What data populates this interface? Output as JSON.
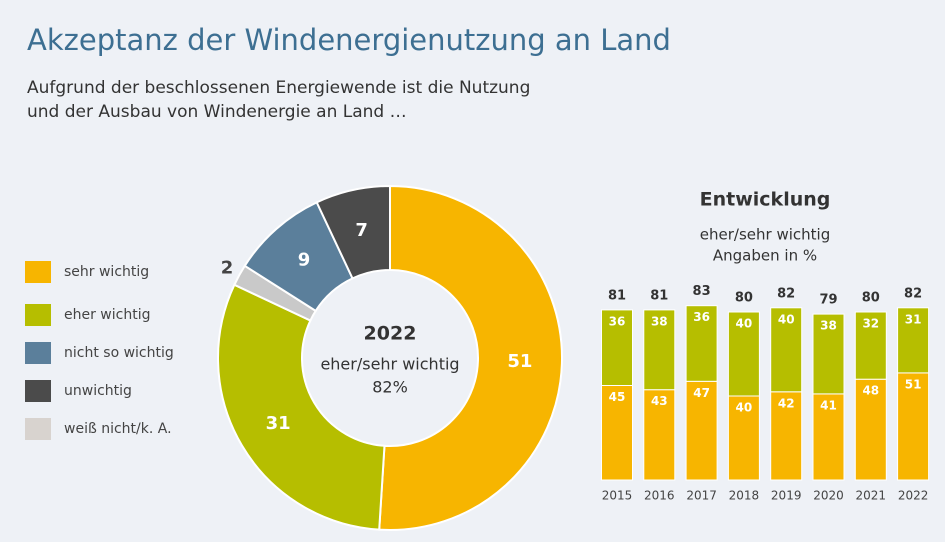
{
  "title": "Akzeptanz der Windenergienutzung an Land",
  "subtitle": [
    "Aufgrund der beschlossenen Energiewende ist die Nutzung",
    "und der Ausbau von Windenergie an Land …"
  ],
  "chart_data": [
    {
      "type": "pie",
      "categories": [
        "sehr wichtig",
        "eher wichtig",
        "nicht so wichtig",
        "unwichtig",
        "weiß nicht/k. A."
      ],
      "values": [
        51,
        31,
        9,
        7,
        2
      ],
      "colors": [
        "#f7b500",
        "#b6be00",
        "#5b7f9b",
        "#4b4b4b",
        "#c9c9c9"
      ],
      "legend_colors": [
        "#f7b500",
        "#b6be00",
        "#5b7f9b",
        "#4b4b4b",
        "#d8d3cf"
      ],
      "center_title": "2022",
      "center_text": "eher/sehr wichtig",
      "center_value": {
        "value": 82,
        "label": "82%"
      }
    },
    {
      "type": "bar",
      "stacked": true,
      "title": "Entwicklung",
      "subtitle": [
        "eher/sehr wichtig",
        "Angaben in %"
      ],
      "categories": [
        "2015",
        "2016",
        "2017",
        "2018",
        "2019",
        "2020",
        "2021",
        "2022"
      ],
      "series": [
        {
          "color": "#f7b500",
          "values": [
            45,
            43,
            47,
            40,
            42,
            41,
            48,
            51
          ]
        },
        {
          "color": "#b6be00",
          "values": [
            36,
            38,
            36,
            40,
            40,
            38,
            32,
            31
          ]
        }
      ],
      "totals": [
        81,
        81,
        83,
        80,
        82,
        79,
        80,
        82
      ]
    }
  ]
}
